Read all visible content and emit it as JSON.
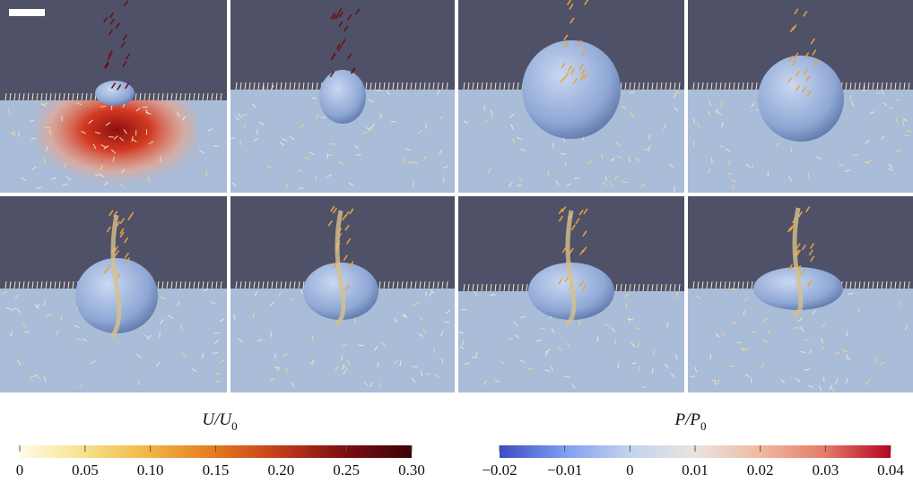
{
  "colorbars": [
    {
      "title": {
        "main": "U/U",
        "sub": "0"
      },
      "lim": [
        0,
        0.3
      ],
      "colors": [
        "#fffbe6",
        "#f8e08a",
        "#f2b441",
        "#e4781f",
        "#c23a1a",
        "#7a0c12",
        "#3a0508"
      ],
      "ticks": [
        0,
        0.05,
        {
          "value": 0.1,
          "label": "0.10"
        },
        0.15,
        {
          "value": 0.2,
          "label": "0.20"
        },
        0.25,
        {
          "value": 0.3,
          "label": "0.30"
        }
      ]
    },
    {
      "title": {
        "main": "P/P",
        "sub": "0"
      },
      "lim": [
        -0.02,
        0.04
      ],
      "colors": [
        "#3b4cc0",
        "#7f9df0",
        "#c4d3ee",
        "#e8e4e0",
        "#f0b9a0",
        "#e47a66",
        "#b40426"
      ],
      "ticks": [
        {
          "value": -0.02,
          "label": "−0.02"
        },
        {
          "value": -0.01,
          "label": "−0.01"
        },
        0,
        0.01,
        0.02,
        0.03,
        0.04
      ]
    }
  ]
}
